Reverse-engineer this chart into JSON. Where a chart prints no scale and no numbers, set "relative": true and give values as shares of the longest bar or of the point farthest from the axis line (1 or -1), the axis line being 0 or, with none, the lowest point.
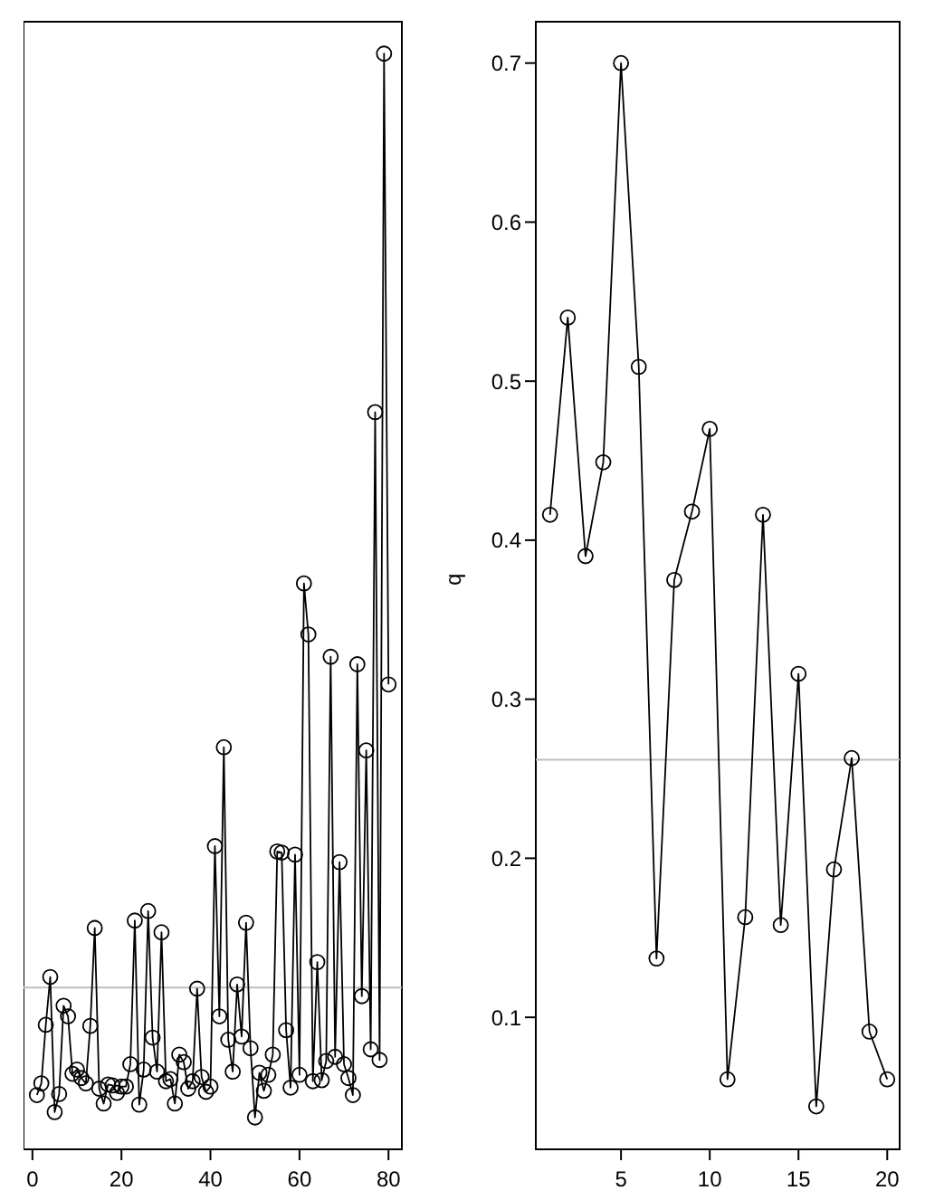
{
  "chart_data": [
    {
      "type": "line",
      "relative": true,
      "x": [
        1,
        2,
        3,
        4,
        5,
        6,
        7,
        8,
        9,
        10,
        11,
        12,
        13,
        14,
        15,
        16,
        17,
        18,
        19,
        20,
        21,
        22,
        23,
        24,
        25,
        26,
        27,
        28,
        29,
        30,
        31,
        32,
        33,
        34,
        35,
        36,
        37,
        38,
        39,
        40,
        41,
        42,
        43,
        44,
        45,
        46,
        47,
        48,
        49,
        50,
        51,
        52,
        53,
        54,
        55,
        56,
        57,
        58,
        59,
        60,
        61,
        62,
        63,
        64,
        65,
        66,
        67,
        68,
        69,
        70,
        71,
        72,
        73,
        74,
        75,
        76,
        77,
        78,
        79,
        80
      ],
      "series": [
        {
          "color": "#000000",
          "values": [
            0.021,
            0.032,
            0.087,
            0.132,
            0.005,
            0.022,
            0.105,
            0.095,
            0.041,
            0.045,
            0.037,
            0.032,
            0.086,
            0.178,
            0.027,
            0.013,
            0.031,
            0.03,
            0.023,
            0.029,
            0.029,
            0.05,
            0.185,
            0.012,
            0.045,
            0.194,
            0.075,
            0.043,
            0.174,
            0.034,
            0.036,
            0.013,
            0.059,
            0.052,
            0.027,
            0.034,
            0.121,
            0.038,
            0.024,
            0.029,
            0.255,
            0.095,
            0.348,
            0.073,
            0.043,
            0.125,
            0.076,
            0.183,
            0.065,
            0,
            0.042,
            0.025,
            0.04,
            0.059,
            0.25,
            0.249,
            0.082,
            0.028,
            0.247,
            0.04,
            0.502,
            0.454,
            0.034,
            0.146,
            0.035,
            0.053,
            0.433,
            0.057,
            0.24,
            0.05,
            0.037,
            0.021,
            0.426,
            0.114,
            0.345,
            0.064,
            0.663,
            0.054,
            1,
            0.407
          ]
        }
      ],
      "xlim": [
        -2,
        83
      ],
      "xticks": [
        0,
        20,
        40,
        60,
        80
      ],
      "tick_labels": "x",
      "marker": "circle",
      "grid": false,
      "ref_lines": [
        {
          "axis": "y",
          "value": 0.122,
          "color": "#bebebe"
        }
      ]
    },
    {
      "type": "line",
      "ylabel": "q",
      "x": [
        1,
        2,
        3,
        4,
        5,
        6,
        7,
        8,
        9,
        10,
        11,
        12,
        13,
        14,
        15,
        16,
        17,
        18,
        19,
        20
      ],
      "series": [
        {
          "color": "#000000",
          "values": [
            0.416,
            0.54,
            0.39,
            0.449,
            0.7,
            0.509,
            0.137,
            0.375,
            0.418,
            0.47,
            0.061,
            0.163,
            0.416,
            0.158,
            0.316,
            0.044,
            0.193,
            0.263,
            0.091,
            0.061
          ]
        }
      ],
      "xlim": [
        0.2,
        20.7
      ],
      "xticks": [
        5,
        10,
        15,
        20
      ],
      "ylim": [
        0.017,
        0.726
      ],
      "yticks": [
        0.1,
        0.2,
        0.3,
        0.4,
        0.5,
        0.6,
        0.7
      ],
      "marker": "circle",
      "grid": false,
      "ref_lines": [
        {
          "axis": "y",
          "value": 0.262,
          "color": "#bebebe"
        }
      ]
    }
  ]
}
